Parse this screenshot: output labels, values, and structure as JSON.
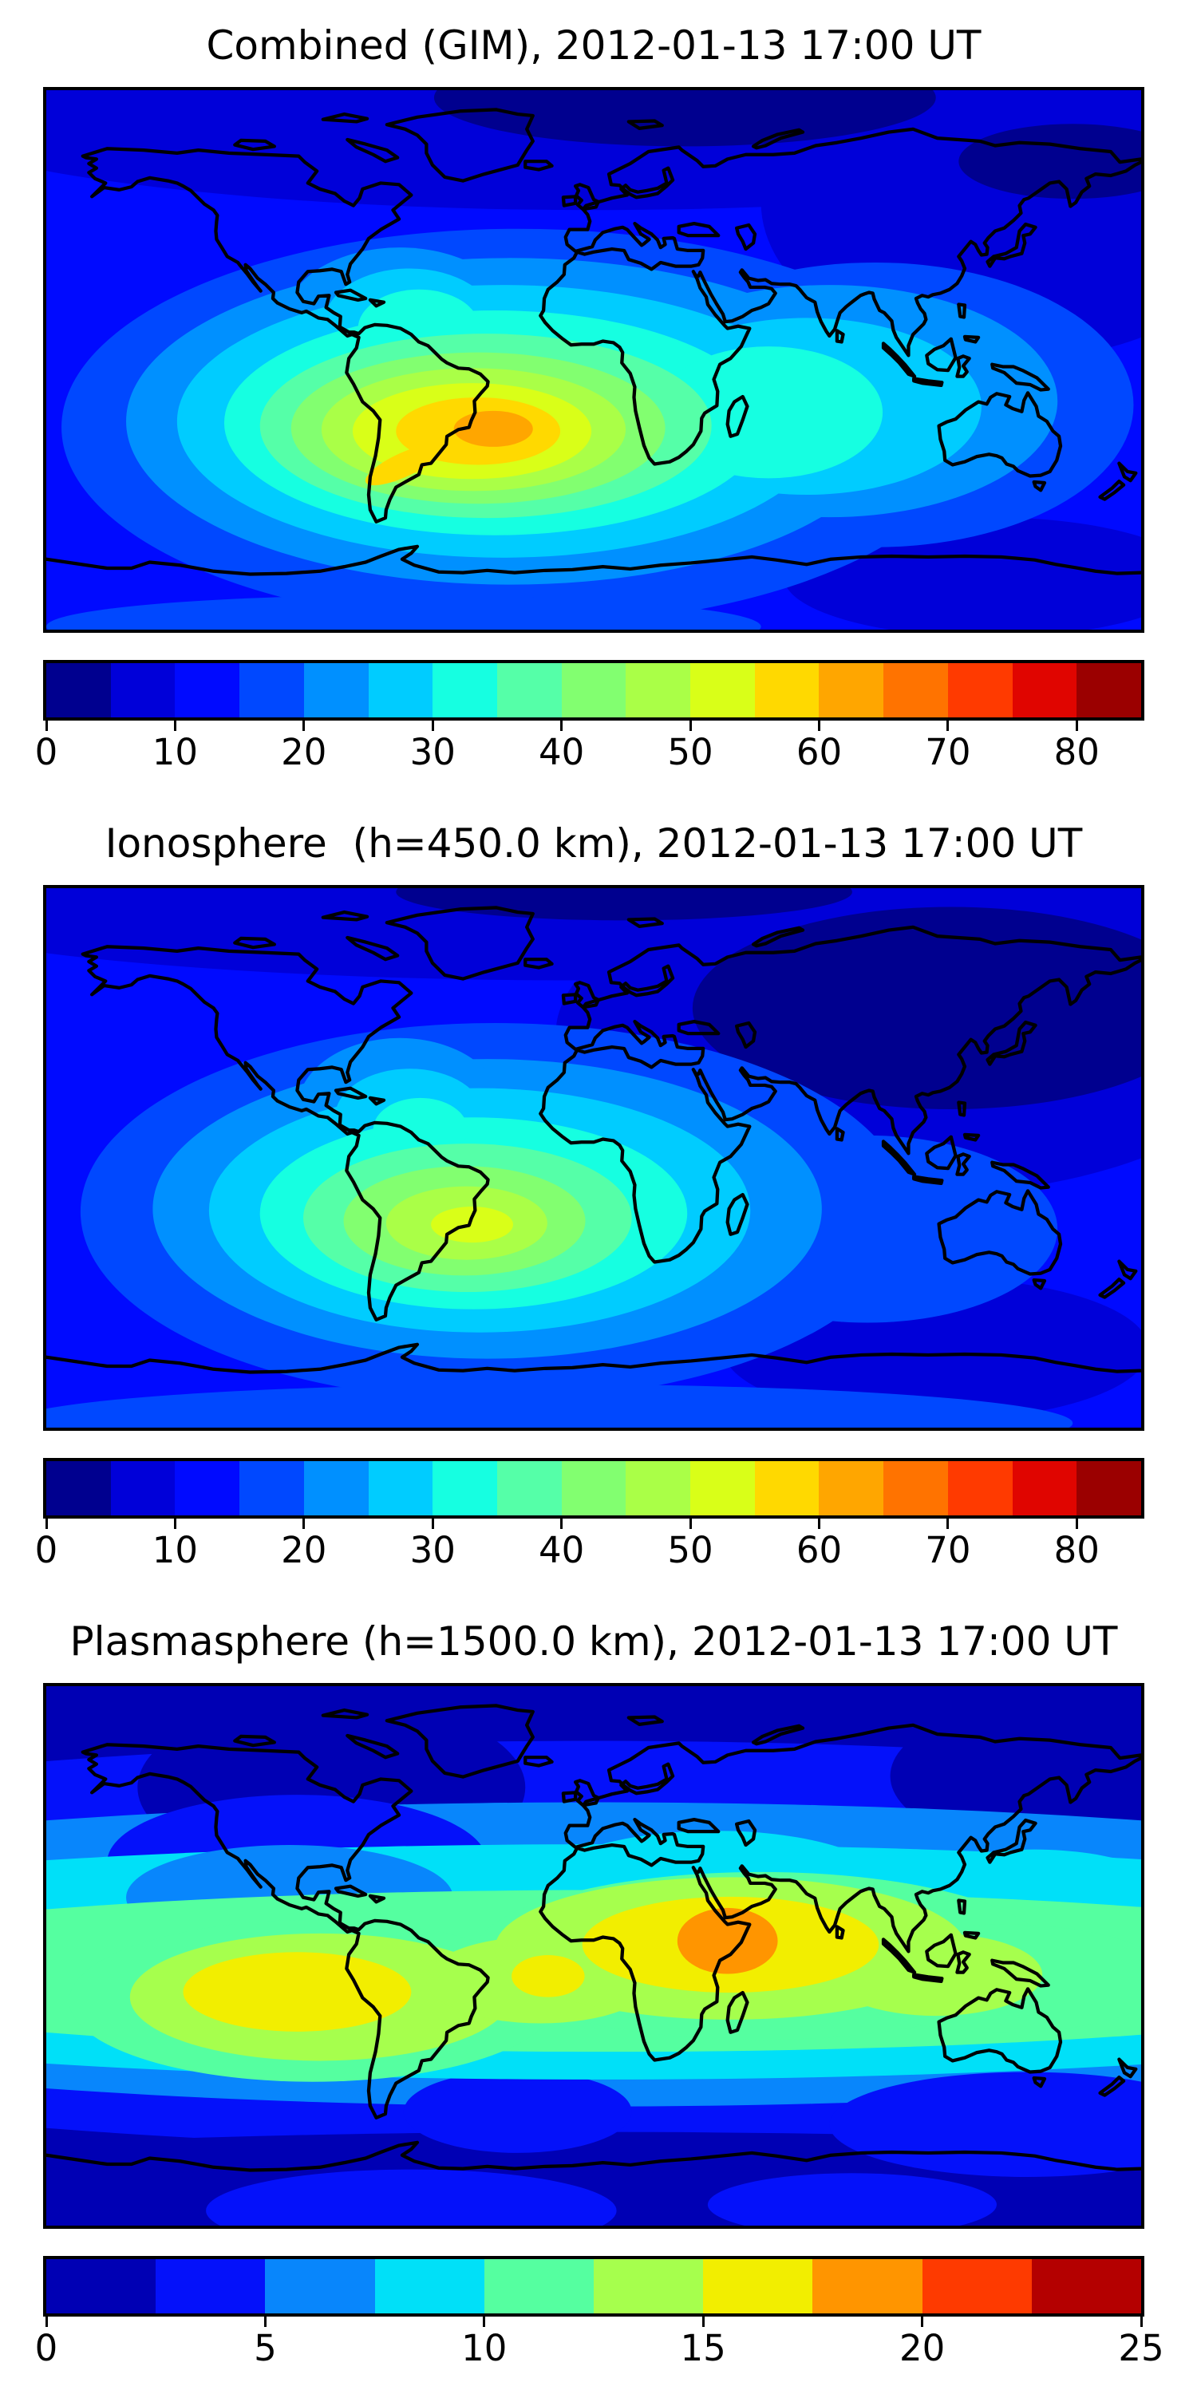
{
  "page": {
    "background": "#ffffff"
  },
  "palettes": {
    "jet17": [
      "#00008f",
      "#0000d9",
      "#000aff",
      "#0048ff",
      "#0090ff",
      "#00ccff",
      "#16ffe1",
      "#55ffa8",
      "#82ff70",
      "#aaff47",
      "#d9ff18",
      "#ffd900",
      "#ffa600",
      "#ff7300",
      "#ff3a00",
      "#e00500",
      "#9b0000"
    ],
    "jet10": [
      "#0000b4",
      "#0411fa",
      "#0886fc",
      "#00e0f8",
      "#55ffa0",
      "#a6ff4d",
      "#f2ee00",
      "#ff9500",
      "#fe3a00",
      "#b40000"
    ]
  },
  "panels": [
    {
      "id": "combined",
      "title": "Combined (GIM), 2012-01-13 17:00 UT",
      "colorbar": {
        "palette_key": "jet17",
        "vmin": 0,
        "vmax": 85,
        "tick_values": [
          0,
          10,
          20,
          30,
          40,
          50,
          60,
          70,
          80
        ],
        "tick_labels": [
          "0",
          "10",
          "20",
          "30",
          "40",
          "50",
          "60",
          "70",
          "80"
        ]
      }
    },
    {
      "id": "ionosphere",
      "title": "Ionosphere  (h=450.0 km), 2012-01-13 17:00 UT",
      "colorbar": {
        "palette_key": "jet17",
        "vmin": 0,
        "vmax": 85,
        "tick_values": [
          0,
          10,
          20,
          30,
          40,
          50,
          60,
          70,
          80
        ],
        "tick_labels": [
          "0",
          "10",
          "20",
          "30",
          "40",
          "50",
          "60",
          "70",
          "80"
        ]
      }
    },
    {
      "id": "plasmasphere",
      "title": "Plasmasphere (h=1500.0 km), 2012-01-13 17:00 UT",
      "colorbar": {
        "palette_key": "jet10",
        "vmin": 0,
        "vmax": 25,
        "tick_values": [
          0,
          5,
          10,
          15,
          20,
          25
        ],
        "tick_labels": [
          "0",
          "5",
          "10",
          "15",
          "20",
          "25"
        ]
      }
    }
  ],
  "chart_data": [
    {
      "type": "heatmap",
      "subtype": "filled-contour-world-map",
      "title": "Combined (GIM), 2012-01-13 17:00 UT",
      "projection": "equirectangular",
      "lon_range": [
        -180,
        180
      ],
      "lat_range": [
        -90,
        90
      ],
      "colormap": "jet",
      "contour_levels": {
        "min": 0,
        "max": 85,
        "step": 5
      },
      "colorbar_ticks": [
        0,
        10,
        20,
        30,
        40,
        50,
        60,
        70,
        80
      ],
      "legend_position": "bottom",
      "approx_features": [
        {
          "feature": "global-maximum",
          "lon": -38,
          "lat": -23,
          "approx_value": 62
        },
        {
          "feature": "equatorial-anomaly-blob",
          "lon_range": [
            -120,
            60
          ],
          "lat_range": [
            -45,
            10
          ],
          "approx_value_range": [
            25,
            62
          ]
        },
        {
          "feature": "secondary-enhancement-indian-ocean",
          "lon": 62,
          "lat": -18,
          "approx_value": 33
        },
        {
          "feature": "caribbean-finger",
          "lon": -60,
          "lat": 12,
          "approx_value": 28
        },
        {
          "feature": "high-northern-latitude-minimum",
          "lat_range": [
            55,
            90
          ],
          "approx_value": 4
        },
        {
          "feature": "background-ocean-value",
          "approx_value": 12
        }
      ]
    },
    {
      "type": "heatmap",
      "subtype": "filled-contour-world-map",
      "title": "Ionosphere  (h=450.0 km), 2012-01-13 17:00 UT",
      "projection": "equirectangular",
      "lon_range": [
        -180,
        180
      ],
      "lat_range": [
        -90,
        90
      ],
      "colormap": "jet",
      "contour_levels": {
        "min": 0,
        "max": 85,
        "step": 5
      },
      "colorbar_ticks": [
        0,
        10,
        20,
        30,
        40,
        50,
        60,
        70,
        80
      ],
      "legend_position": "bottom",
      "approx_features": [
        {
          "feature": "global-maximum",
          "lon": -42,
          "lat": -20,
          "approx_value": 50
        },
        {
          "feature": "south-america-blob",
          "lon_range": [
            -95,
            10
          ],
          "lat_range": [
            -45,
            5
          ],
          "approx_value_range": [
            20,
            50
          ]
        },
        {
          "feature": "northeast-asia-minimum",
          "lon_range": [
            60,
            180
          ],
          "lat_range": [
            30,
            80
          ],
          "approx_value": 3
        },
        {
          "feature": "background-ocean-value",
          "approx_value": 12
        }
      ]
    },
    {
      "type": "heatmap",
      "subtype": "filled-contour-world-map",
      "title": "Plasmasphere (h=1500.0 km), 2012-01-13 17:00 UT",
      "projection": "equirectangular",
      "lon_range": [
        -180,
        180
      ],
      "lat_range": [
        -90,
        90
      ],
      "colormap": "jet",
      "contour_levels": {
        "min": 0,
        "max": 25,
        "step": 2.5
      },
      "colorbar_ticks": [
        0,
        5,
        10,
        15,
        20,
        25
      ],
      "legend_position": "bottom",
      "approx_features": [
        {
          "feature": "global-maximum",
          "lon": 44,
          "lat": 5,
          "approx_value": 19
        },
        {
          "feature": "secondary-maximum-south-america",
          "lon": -75,
          "lat": -10,
          "approx_value": 16
        },
        {
          "feature": "small-mid-atlantic-maximum",
          "lon": -15,
          "lat": -3,
          "approx_value": 16
        },
        {
          "feature": "equatorial-enhanced-band",
          "lat_range": [
            -30,
            25
          ],
          "approx_value_range": [
            7.5,
            19
          ]
        },
        {
          "feature": "polar-minima",
          "approx_value": 1.5
        }
      ]
    }
  ]
}
